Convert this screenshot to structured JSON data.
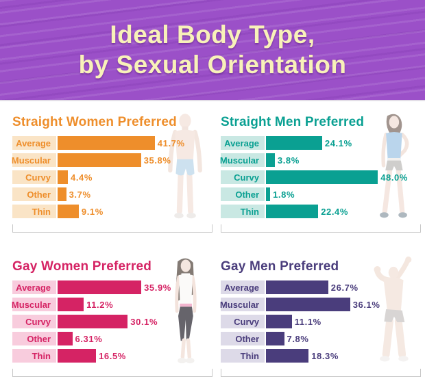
{
  "header": {
    "title_line1": "Ideal Body Type,",
    "title_line2": "by Sexual Orientation"
  },
  "colors": {
    "header_bg": "#9B50C8",
    "header_text": "#F8F1B9",
    "bracket": "#C6C6C6",
    "background": "#FFFFFF"
  },
  "chart_data": [
    {
      "type": "bar",
      "title": "Straight Women Preferred",
      "orientation": "horizontal",
      "categories": [
        "Average",
        "Muscular",
        "Curvy",
        "Other",
        "Thin"
      ],
      "values": [
        41.7,
        35.8,
        4.4,
        3.7,
        9.1
      ],
      "value_labels": [
        "41.7%",
        "35.8%",
        "4.4%",
        "3.7%",
        "9.1%"
      ],
      "xlim": [
        0,
        50
      ],
      "color": "#EE8E2B",
      "label_bg": "#FAE4C6",
      "figure": "standing-man-illustration"
    },
    {
      "type": "bar",
      "title": "Straight Men Preferred",
      "orientation": "horizontal",
      "categories": [
        "Average",
        "Muscular",
        "Curvy",
        "Other",
        "Thin"
      ],
      "values": [
        24.1,
        3.8,
        48.0,
        1.8,
        22.4
      ],
      "value_labels": [
        "24.1%",
        "3.8%",
        "48.0%",
        "1.8%",
        "22.4%"
      ],
      "xlim": [
        0,
        50
      ],
      "color": "#0AA092",
      "label_bg": "#C9E8E3",
      "figure": "woman-hand-on-hip-illustration"
    },
    {
      "type": "bar",
      "title": "Gay Women Preferred",
      "orientation": "horizontal",
      "categories": [
        "Average",
        "Muscular",
        "Curvy",
        "Other",
        "Thin"
      ],
      "values": [
        35.9,
        11.2,
        30.1,
        6.31,
        16.5
      ],
      "value_labels": [
        "35.9%",
        "11.2%",
        "30.1%",
        "6.31%",
        "16.5%"
      ],
      "xlim": [
        0,
        50
      ],
      "color": "#D52364",
      "label_bg": "#F8CCDD",
      "figure": "standing-woman-illustration"
    },
    {
      "type": "bar",
      "title": "Gay Men Preferred",
      "orientation": "horizontal",
      "categories": [
        "Average",
        "Muscular",
        "Curvy",
        "Other",
        "Thin"
      ],
      "values": [
        26.7,
        36.1,
        11.1,
        7.8,
        18.3
      ],
      "value_labels": [
        "26.7%",
        "36.1%",
        "11.1%",
        "7.8%",
        "18.3%"
      ],
      "xlim": [
        0,
        50
      ],
      "color": "#4A3D7C",
      "label_bg": "#DDDAE8",
      "figure": "bodybuilder-illustration"
    }
  ]
}
